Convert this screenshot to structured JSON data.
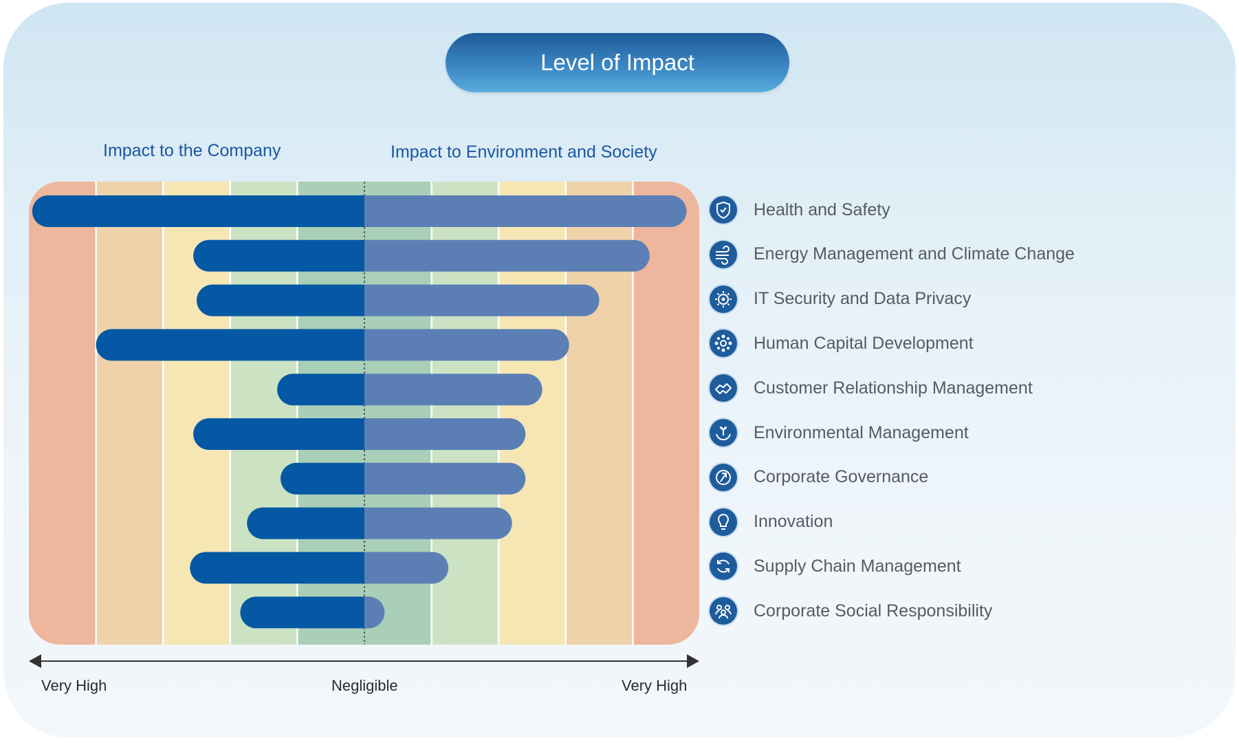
{
  "title": "Level of Impact",
  "colors": {
    "company_bar": "#0558a3",
    "env_bar": "#5b7fb5",
    "bands": [
      "#edb69d",
      "#efd2aa",
      "#f5e6b4",
      "#cbe3c3",
      "#a9cfb8",
      "#a9cfb8",
      "#cbe3c3",
      "#f5e6b4",
      "#efd2aa",
      "#edb69d"
    ]
  },
  "chart_data": {
    "type": "bar",
    "subtype": "diverging-horizontal",
    "left_side_label": "Impact to the Company",
    "right_side_label": "Impact to Environment and Society",
    "scale_max": 5,
    "axis": {
      "left_label": "Very High",
      "center_label": "Negligible",
      "right_label": "Very High"
    },
    "categories": [
      "Health and Safety",
      "Energy Management and Climate Change",
      "IT Security and Data Privacy",
      "Human Capital Development",
      "Customer Relationship Management",
      "Environmental Management",
      "Corporate Governance",
      "Innovation",
      "Supply Chain Management",
      "Corporate Social Responsibility"
    ],
    "series": [
      {
        "name": "Impact to the Company",
        "values": [
          4.95,
          2.55,
          2.5,
          4.0,
          1.3,
          2.55,
          1.25,
          1.75,
          2.6,
          1.85
        ]
      },
      {
        "name": "Impact to Environment and Society",
        "values": [
          4.8,
          4.25,
          3.5,
          3.05,
          2.65,
          2.4,
          2.4,
          2.2,
          1.25,
          0.3
        ]
      }
    ],
    "grid": false,
    "legend_position": "right"
  },
  "legend_icons": [
    "shield-icon",
    "wind-icon",
    "gear-icon",
    "people-network-icon",
    "handshake-icon",
    "plant-hands-icon",
    "governance-icon",
    "lightbulb-icon",
    "cycle-icon",
    "community-icon"
  ]
}
